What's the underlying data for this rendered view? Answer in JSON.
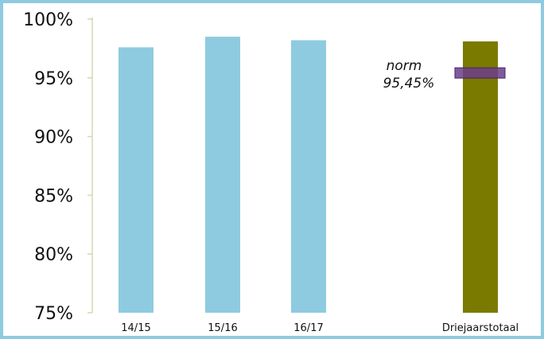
{
  "chart_data": {
    "type": "bar",
    "categories": [
      "14/15",
      "15/16",
      "16/17",
      "Driejaarstotaal"
    ],
    "values": [
      97.6,
      98.5,
      98.2,
      98.1
    ],
    "ylim": [
      75,
      100
    ],
    "yticks": [
      75,
      80,
      85,
      90,
      95,
      100
    ],
    "ytick_labels": [
      "75%",
      "80%",
      "85%",
      "90%",
      "95%",
      "100%"
    ],
    "title": "",
    "xlabel": "",
    "ylabel": "",
    "grid": false,
    "colors": {
      "bars": [
        "#8ecbe0",
        "#8ecbe0",
        "#8ecbe0",
        "#7a7a00"
      ],
      "norm_marker": "#6b3d8a",
      "axis": "#d4d9b0",
      "frame": "#8ecbe0"
    },
    "norm": {
      "value": 95.45,
      "label_line1": "norm",
      "label_line2": "95,45%"
    }
  }
}
